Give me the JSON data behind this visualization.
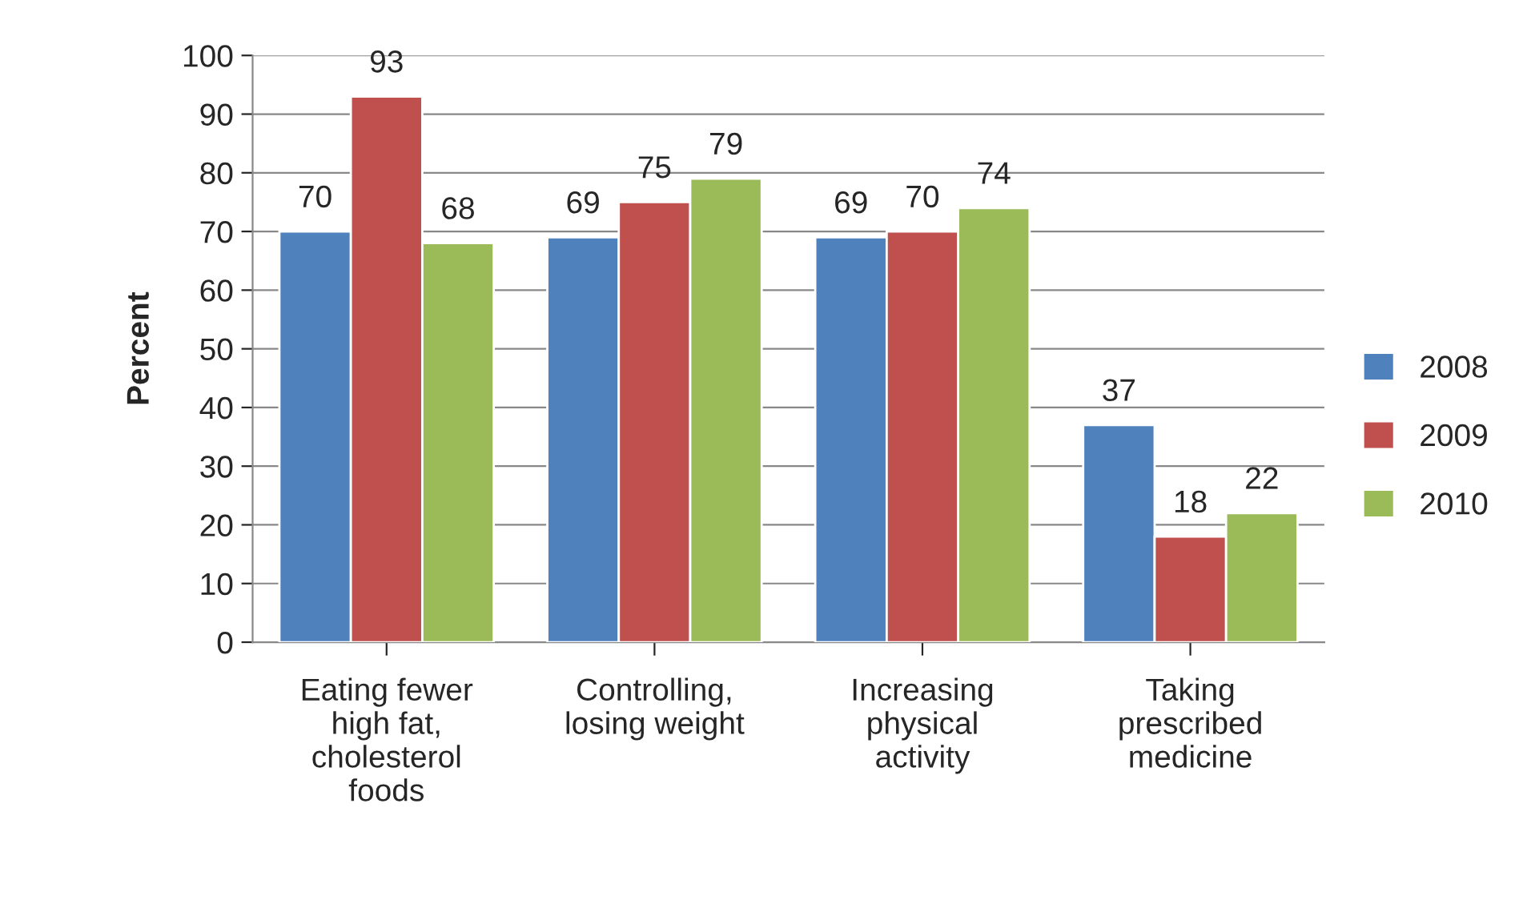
{
  "chart_data": {
    "type": "bar",
    "ylabel": "Percent",
    "categories": [
      "Eating fewer\nhigh fat,\ncholesterol\nfoods",
      "Controlling,\nlosing weight",
      "Increasing\nphysical\nactivity",
      "Taking\nprescribed\nmedicine"
    ],
    "series": [
      {
        "name": "2008",
        "color": "#4f81bd",
        "values": [
          70,
          69,
          69,
          37
        ]
      },
      {
        "name": "2009",
        "color": "#c0504d",
        "values": [
          93,
          75,
          70,
          18
        ]
      },
      {
        "name": "2010",
        "color": "#9bbb59",
        "values": [
          68,
          79,
          74,
          22
        ]
      }
    ],
    "ylim": [
      0,
      100
    ],
    "yticks": [
      0,
      10,
      20,
      30,
      40,
      50,
      60,
      70,
      80,
      90,
      100
    ],
    "grid": "y",
    "legend": "right",
    "data_labels": true
  }
}
